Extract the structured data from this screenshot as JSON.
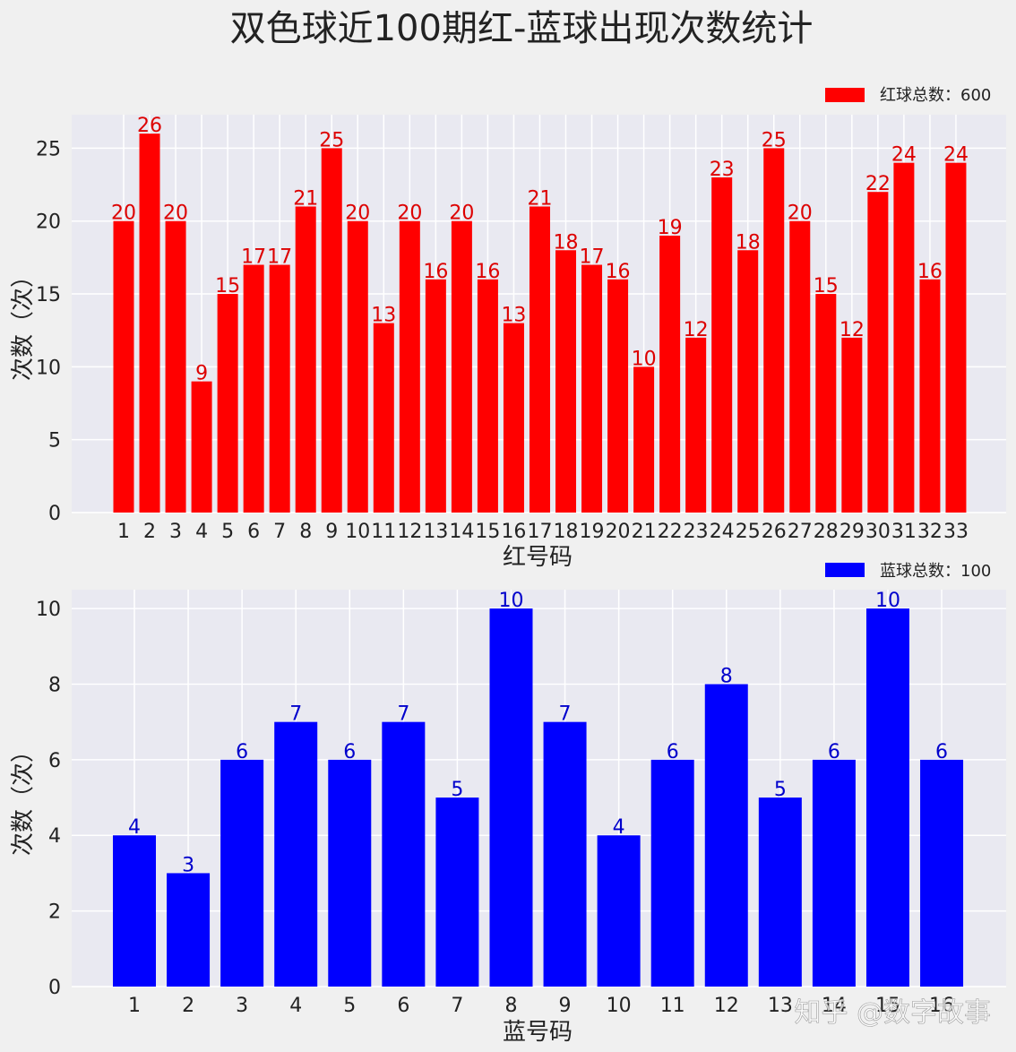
{
  "title": "双色球近100期红-蓝球出现次数统计",
  "watermark": "知乎 @数字故事",
  "colors": {
    "background": "#f0f0f0",
    "plot_background": "#e9e9f1",
    "grid": "#ffffff",
    "red_bar": "#ff0000",
    "red_label": "#dd0000",
    "blue_bar": "#0000ff",
    "blue_label": "#0000cc"
  },
  "chart_data": [
    {
      "type": "bar",
      "xlabel": "红号码",
      "ylabel": "次数（次）",
      "legend": "红球总数：600",
      "legend_position": "top-right",
      "grid": true,
      "ylim": [
        0,
        27.3
      ],
      "yticks": [
        0,
        5,
        10,
        15,
        20,
        25
      ],
      "categories": [
        "1",
        "2",
        "3",
        "4",
        "5",
        "6",
        "7",
        "8",
        "9",
        "10",
        "11",
        "12",
        "13",
        "14",
        "15",
        "16",
        "17",
        "18",
        "19",
        "20",
        "21",
        "22",
        "23",
        "24",
        "25",
        "26",
        "27",
        "28",
        "29",
        "30",
        "31",
        "32",
        "33"
      ],
      "values": [
        20,
        26,
        20,
        9,
        15,
        17,
        17,
        21,
        25,
        20,
        13,
        20,
        16,
        20,
        16,
        13,
        21,
        18,
        17,
        16,
        10,
        19,
        12,
        23,
        18,
        25,
        20,
        15,
        12,
        22,
        24,
        16,
        24
      ]
    },
    {
      "type": "bar",
      "xlabel": "蓝号码",
      "ylabel": "次数（次）",
      "legend": "蓝球总数：100",
      "legend_position": "top-right",
      "grid": true,
      "ylim": [
        0,
        10.5
      ],
      "yticks": [
        0,
        2,
        4,
        6,
        8,
        10
      ],
      "categories": [
        "1",
        "2",
        "3",
        "4",
        "5",
        "6",
        "7",
        "8",
        "9",
        "10",
        "11",
        "12",
        "13",
        "14",
        "15",
        "16"
      ],
      "values": [
        4,
        3,
        6,
        7,
        6,
        7,
        5,
        10,
        7,
        4,
        6,
        8,
        5,
        6,
        10,
        6
      ]
    }
  ]
}
